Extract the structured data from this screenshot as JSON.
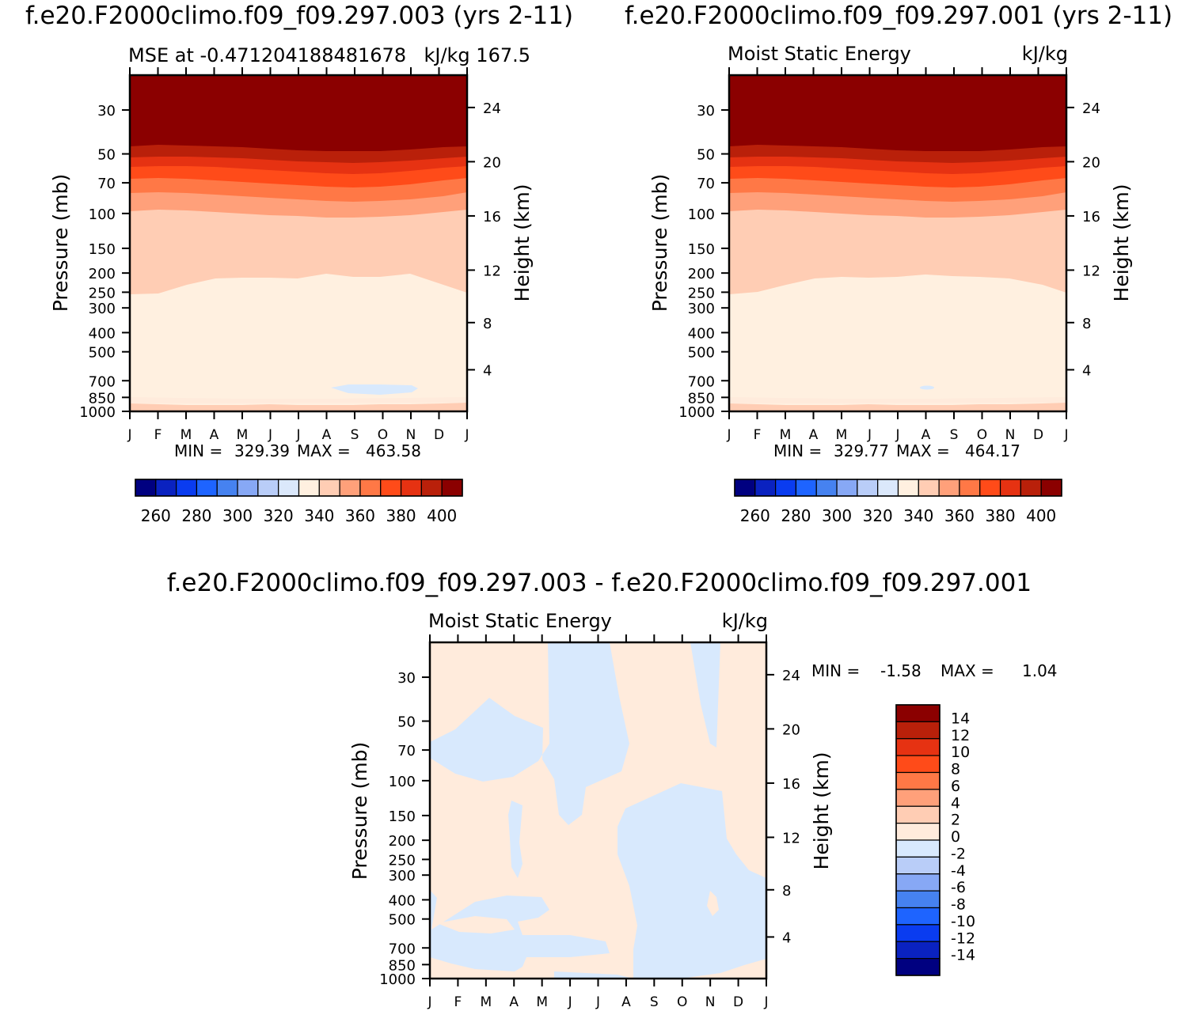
{
  "months": [
    "J",
    "F",
    "M",
    "A",
    "M",
    "J",
    "J",
    "A",
    "S",
    "O",
    "N",
    "D",
    "J"
  ],
  "pressure_ticks": [
    "30",
    "50",
    "70",
    "100",
    "150",
    "200",
    "250",
    "300",
    "400",
    "500",
    "700",
    "850",
    "1000"
  ],
  "height_ticks": [
    "24",
    "20",
    "16",
    "12",
    "8",
    "4"
  ],
  "pressure_label": "Pressure (mb)",
  "height_label": "Height (km)",
  "colors": {
    "abs_fill": [
      "#000080",
      "#0a22c0",
      "#0a3cf0",
      "#1e64ff",
      "#4682f0",
      "#87a8f5",
      "#b9cdf8",
      "#dbe8fb",
      "#fff0e0",
      "#ffcdb4",
      "#ffa07a",
      "#ff7846",
      "#ff4b19",
      "#e63212",
      "#b9200a",
      "#8b0000"
    ],
    "diff_fill": [
      "#000080",
      "#0a22c0",
      "#0a3cf0",
      "#1e64ff",
      "#4682f0",
      "#87a8f5",
      "#b9cdf8",
      "#d8e9fd",
      "#ffebdc",
      "#ffcdb4",
      "#ffa07a",
      "#ff7846",
      "#ff4b19",
      "#e63212",
      "#b9200a",
      "#8b0000"
    ]
  },
  "chart_data": [
    {
      "type": "heatmap",
      "panel": "top-left",
      "title": "f.e20.F2000climo.f09_f09.297.003 (yrs 2-11)",
      "left_label": "MSE at -0.471204188481678",
      "right_label": "kJ/kg 167.5",
      "x": [
        "J",
        "F",
        "M",
        "A",
        "M",
        "J",
        "J",
        "A",
        "S",
        "O",
        "N",
        "D",
        "J"
      ],
      "y_pressure": [
        30,
        50,
        70,
        100,
        150,
        200,
        250,
        300,
        400,
        500,
        700,
        850,
        1000
      ],
      "y_height_km": [
        24,
        20,
        16,
        12,
        8,
        4
      ],
      "stats": {
        "min_label": "MIN =",
        "min": "329.39",
        "max_label": "MAX =",
        "max": "463.58"
      },
      "levels": [
        "260",
        "280",
        "300",
        "320",
        "340",
        "360",
        "380",
        "400"
      ],
      "contour_interval": 10,
      "units": "kJ/kg"
    },
    {
      "type": "heatmap",
      "panel": "top-right",
      "title": "f.e20.F2000climo.f09_f09.297.001 (yrs 2-11)",
      "left_label": "Moist Static Energy",
      "right_label": "kJ/kg",
      "x": [
        "J",
        "F",
        "M",
        "A",
        "M",
        "J",
        "J",
        "A",
        "S",
        "O",
        "N",
        "D",
        "J"
      ],
      "y_pressure": [
        30,
        50,
        70,
        100,
        150,
        200,
        250,
        300,
        400,
        500,
        700,
        850,
        1000
      ],
      "y_height_km": [
        24,
        20,
        16,
        12,
        8,
        4
      ],
      "stats": {
        "min_label": "MIN =",
        "min": "329.77",
        "max_label": "MAX =",
        "max": "464.17"
      },
      "levels": [
        "260",
        "280",
        "300",
        "320",
        "340",
        "360",
        "380",
        "400"
      ],
      "contour_interval": 10,
      "units": "kJ/kg"
    },
    {
      "type": "heatmap",
      "panel": "bottom",
      "title": "f.e20.F2000climo.f09_f09.297.003 - f.e20.F2000climo.f09_f09.297.001",
      "left_label": "Moist Static Energy",
      "right_label": "kJ/kg",
      "x": [
        "J",
        "F",
        "M",
        "A",
        "M",
        "J",
        "J",
        "A",
        "S",
        "O",
        "N",
        "D",
        "J"
      ],
      "y_pressure": [
        30,
        50,
        70,
        100,
        150,
        200,
        250,
        300,
        400,
        500,
        700,
        850,
        1000
      ],
      "y_height_km": [
        24,
        20,
        16,
        12,
        8,
        4
      ],
      "stats": {
        "min_label": "MIN =",
        "min": "-1.58",
        "max_label": "MAX =",
        "max": "1.04"
      },
      "levels": [
        "14",
        "12",
        "10",
        "8",
        "6",
        "4",
        "2",
        "0",
        "-2",
        "-4",
        "-6",
        "-8",
        "-10",
        "-12",
        "-14"
      ],
      "contour_interval": 2,
      "units": "kJ/kg"
    }
  ]
}
